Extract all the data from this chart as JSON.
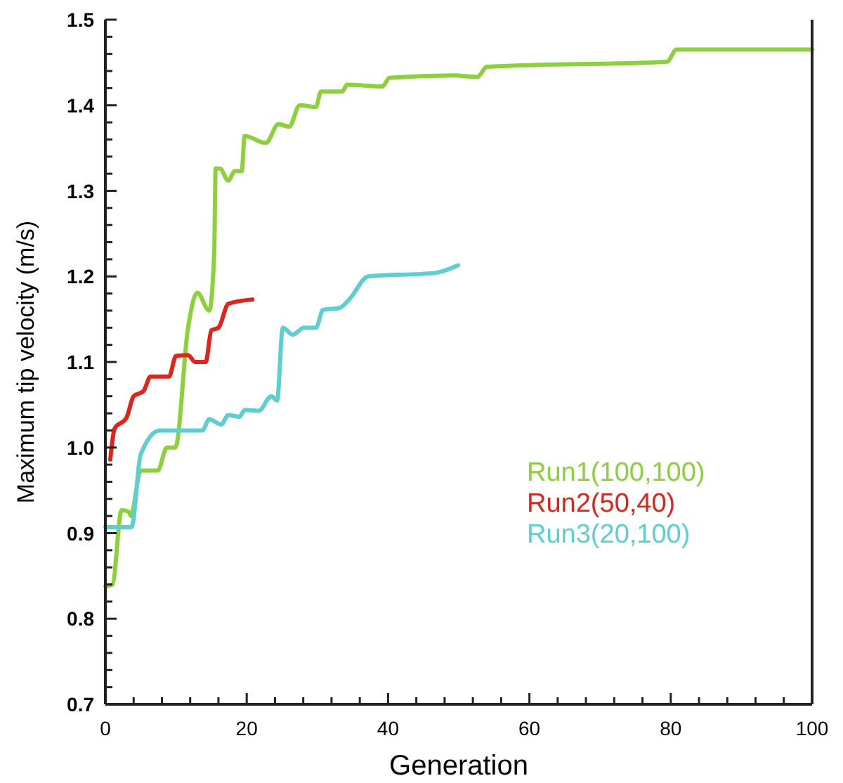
{
  "chart_data": {
    "type": "line",
    "xlabel": "Generation",
    "ylabel": "Maximum tip velocity (m/s)",
    "xlim": [
      0,
      100
    ],
    "ylim": [
      0.7,
      1.5
    ],
    "xticks": [
      0,
      {
        "value": 4,
        "label": null
      },
      {
        "value": 8,
        "label": null
      },
      {
        "value": 12,
        "label": null
      },
      {
        "value": 16,
        "label": null
      },
      20,
      {
        "value": 24,
        "label": null
      },
      {
        "value": 28,
        "label": null
      },
      {
        "value": 32,
        "label": null
      },
      {
        "value": 36,
        "label": null
      },
      40,
      {
        "value": 44,
        "label": null
      },
      {
        "value": 48,
        "label": null
      },
      {
        "value": 52,
        "label": null
      },
      {
        "value": 56,
        "label": null
      },
      60,
      {
        "value": 64,
        "label": null
      },
      {
        "value": 68,
        "label": null
      },
      {
        "value": 72,
        "label": null
      },
      {
        "value": 76,
        "label": null
      },
      80,
      {
        "value": 84,
        "label": null
      },
      {
        "value": 88,
        "label": null
      },
      {
        "value": 92,
        "label": null
      },
      {
        "value": 96,
        "label": null
      },
      100
    ],
    "yticks": [
      {
        "value": 0.7,
        "label": "0.7"
      },
      {
        "value": 0.72,
        "label": null
      },
      {
        "value": 0.74,
        "label": null
      },
      {
        "value": 0.76,
        "label": null
      },
      {
        "value": 0.78,
        "label": null
      },
      {
        "value": 0.8,
        "label": "0.8"
      },
      {
        "value": 0.82,
        "label": null
      },
      {
        "value": 0.84,
        "label": null
      },
      {
        "value": 0.86,
        "label": null
      },
      {
        "value": 0.88,
        "label": null
      },
      {
        "value": 0.9,
        "label": "0.9"
      },
      {
        "value": 0.92,
        "label": null
      },
      {
        "value": 0.94,
        "label": null
      },
      {
        "value": 0.96,
        "label": null
      },
      {
        "value": 0.98,
        "label": null
      },
      {
        "value": 1.0,
        "label": "1.0"
      },
      {
        "value": 1.02,
        "label": null
      },
      {
        "value": 1.04,
        "label": null
      },
      {
        "value": 1.06,
        "label": null
      },
      {
        "value": 1.08,
        "label": null
      },
      {
        "value": 1.1,
        "label": "1.1"
      },
      {
        "value": 1.12,
        "label": null
      },
      {
        "value": 1.14,
        "label": null
      },
      {
        "value": 1.16,
        "label": null
      },
      {
        "value": 1.18,
        "label": null
      },
      {
        "value": 1.2,
        "label": "1.2"
      },
      {
        "value": 1.22,
        "label": null
      },
      {
        "value": 1.24,
        "label": null
      },
      {
        "value": 1.26,
        "label": null
      },
      {
        "value": 1.28,
        "label": null
      },
      {
        "value": 1.3,
        "label": "1.3"
      },
      {
        "value": 1.32,
        "label": null
      },
      {
        "value": 1.34,
        "label": null
      },
      {
        "value": 1.36,
        "label": null
      },
      {
        "value": 1.38,
        "label": null
      },
      {
        "value": 1.4,
        "label": "1.4"
      },
      {
        "value": 1.42,
        "label": null
      },
      {
        "value": 1.44,
        "label": null
      },
      {
        "value": 1.46,
        "label": null
      },
      {
        "value": 1.48,
        "label": null
      },
      {
        "value": 1.5,
        "label": "1.5"
      }
    ],
    "grid": false,
    "legend": "right",
    "line_style": "solid",
    "series": [
      {
        "name": "Run1(100,100)",
        "color": "#8dd13a",
        "x": [
          0,
          1,
          2.3,
          3.3,
          3.6,
          5,
          7.4,
          8.7,
          9.9,
          11.7,
          13,
          14.7,
          15.4,
          15.6,
          16.2,
          17.4,
          18.3,
          19.3,
          19.7,
          22.7,
          24.5,
          26,
          27.5,
          29.8,
          30.5,
          33.5,
          34.2,
          39.2,
          40.2,
          49.3,
          52.6,
          54,
          79.5,
          80.8,
          100
        ],
        "values": [
          0.838,
          0.84,
          0.927,
          0.925,
          0.92,
          0.973,
          0.973,
          1.0,
          1.0,
          1.14,
          1.181,
          1.16,
          1.227,
          1.326,
          1.326,
          1.312,
          1.323,
          1.323,
          1.364,
          1.356,
          1.378,
          1.375,
          1.4,
          1.398,
          1.416,
          1.416,
          1.424,
          1.422,
          1.432,
          1.435,
          1.433,
          1.445,
          1.451,
          1.465,
          1.465
        ]
      },
      {
        "name": "Run2(50,40)",
        "color": "#e0241b",
        "x": [
          0.7,
          1.3,
          3,
          4,
          5.4,
          6.4,
          9,
          10,
          11.7,
          12.7,
          14.2,
          15,
          16,
          17.4,
          20.8
        ],
        "values": [
          0.986,
          1.022,
          1.035,
          1.06,
          1.066,
          1.083,
          1.083,
          1.107,
          1.108,
          1.1,
          1.1,
          1.137,
          1.14,
          1.168,
          1.173
        ]
      },
      {
        "name": "Run3(20,100)",
        "color": "#5ccfd0",
        "x": [
          0,
          3.7,
          5,
          7.7,
          13.7,
          14.7,
          16.4,
          17.4,
          19,
          19.7,
          21.7,
          23.5,
          24.3,
          25.1,
          26.5,
          28.1,
          29.8,
          30.8,
          33.1,
          34.5,
          37.2,
          46.6,
          49.9
        ],
        "values": [
          0.907,
          0.907,
          0.992,
          1.02,
          1.02,
          1.033,
          1.027,
          1.038,
          1.036,
          1.044,
          1.043,
          1.06,
          1.055,
          1.14,
          1.132,
          1.14,
          1.14,
          1.161,
          1.163,
          1.173,
          1.2,
          1.204,
          1.213
        ]
      }
    ]
  }
}
